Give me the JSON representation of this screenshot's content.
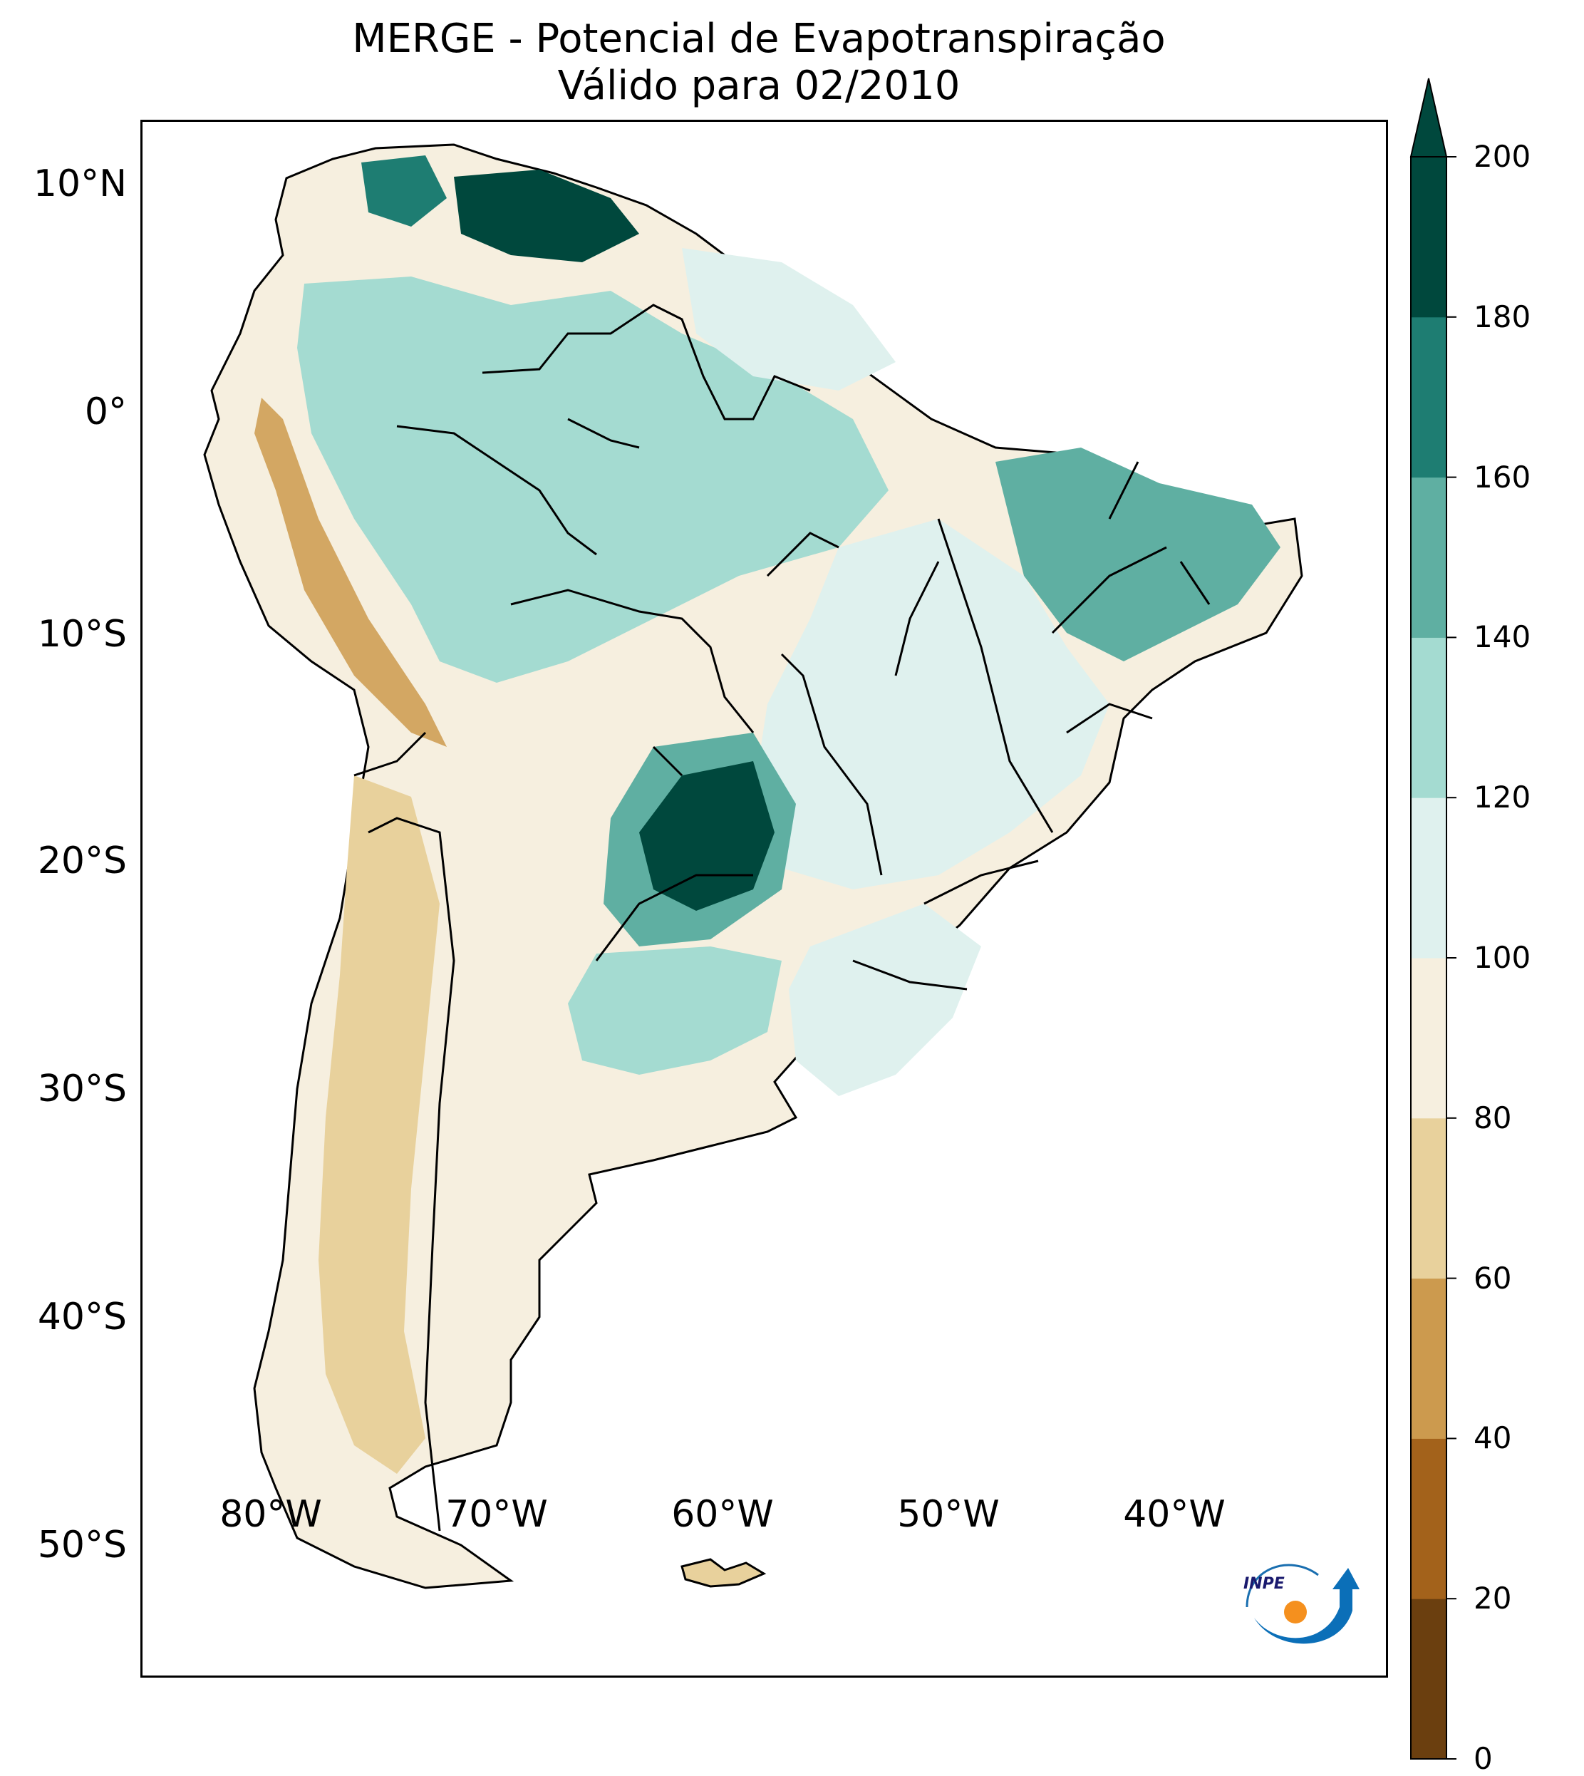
{
  "title": {
    "line1": "MERGE - Potencial de Evapotranspiração",
    "line2": "Válido para 02/2010"
  },
  "axes": {
    "lat_labels": [
      "10°N",
      "0°",
      "10°S",
      "20°S",
      "30°S",
      "40°S",
      "50°S"
    ],
    "lon_labels": [
      "80°W",
      "70°W",
      "60°W",
      "50°W",
      "40°W"
    ]
  },
  "colorbar": {
    "ticks": [
      "0",
      "20",
      "40",
      "60",
      "80",
      "100",
      "120",
      "140",
      "160",
      "180",
      "200"
    ],
    "colors": [
      "#6b3f0f",
      "#a3621b",
      "#cc9a4e",
      "#e8d19c",
      "#f6efdf",
      "#dff1ee",
      "#a4dbd1",
      "#5fafa2",
      "#1e7d72",
      "#00483d"
    ],
    "extend": "max"
  },
  "logo": {
    "text": "INPE"
  }
}
